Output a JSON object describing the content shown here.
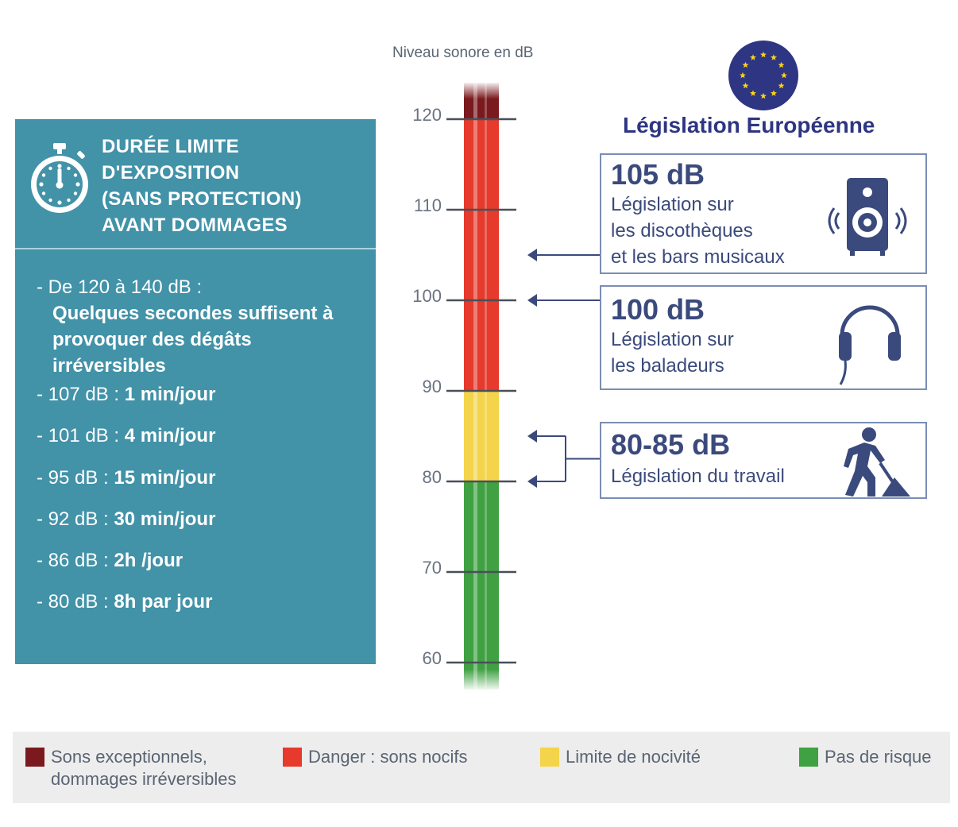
{
  "exposure_panel": {
    "title_lines": [
      "DURÉE LIMITE",
      "D'EXPOSITION",
      "(SANS PROTECTION)",
      "AVANT DOMMAGES"
    ],
    "first_item": {
      "lead": "- De 120 à 140 dB :",
      "description": "Quelques secondes suffisent à provoquer des dégâts irréversibles"
    },
    "items": [
      {
        "level": "- 107 dB : ",
        "duration": "1 min/jour"
      },
      {
        "level": "- 101 dB : ",
        "duration": "4 min/jour"
      },
      {
        "level": "- 95 dB : ",
        "duration": "15 min/jour"
      },
      {
        "level": "- 92 dB : ",
        "duration": "30 min/jour"
      },
      {
        "level": "- 86 dB : ",
        "duration": "2h /jour"
      },
      {
        "level": "- 80 dB : ",
        "duration": "8h par jour"
      }
    ]
  },
  "scale": {
    "axis_title": "Niveau sonore en dB",
    "ticks": [
      120,
      110,
      100,
      90,
      80,
      70,
      60
    ],
    "range": [
      57,
      124
    ],
    "bands": [
      {
        "from": 120,
        "to": 124,
        "level": "exceptional"
      },
      {
        "from": 90,
        "to": 120,
        "level": "danger"
      },
      {
        "from": 80,
        "to": 90,
        "level": "limit"
      },
      {
        "from": 57,
        "to": 80,
        "level": "safe"
      }
    ]
  },
  "european_legislation": {
    "title": "Législation Européenne",
    "entries": [
      {
        "db": "105 dB",
        "lines": [
          "Législation sur",
          "les discothèques",
          "et les bars musicaux"
        ],
        "icon": "speaker-icon",
        "points_to": [
          105
        ]
      },
      {
        "db": "100 dB",
        "lines": [
          "Législation sur",
          "les baladeurs"
        ],
        "icon": "headphones-icon",
        "points_to": [
          100
        ]
      },
      {
        "db": "80-85 dB",
        "lines": [
          "Législation du travail"
        ],
        "icon": "worker-icon",
        "points_to": [
          85,
          80
        ]
      }
    ]
  },
  "legend": [
    {
      "lines": [
        "Sons exceptionnels,",
        "dommages irréversibles"
      ],
      "color": "#7a1a1e"
    },
    {
      "lines": [
        "Danger : sons nocifs"
      ],
      "color": "#e53a2c"
    },
    {
      "lines": [
        "Limite de nocivité"
      ],
      "color": "#f4d44a"
    },
    {
      "lines": [
        "Pas de risque"
      ],
      "color": "#3fa142"
    }
  ],
  "colors": {
    "panel": "#4292a8",
    "exceptional": "#7a1a1e",
    "danger": "#e53a2c",
    "limit": "#f4d44a",
    "safe": "#3fa142",
    "eu_blue": "#2e3582",
    "eu_star": "#f7d21a",
    "box_border": "#7a8db5"
  }
}
